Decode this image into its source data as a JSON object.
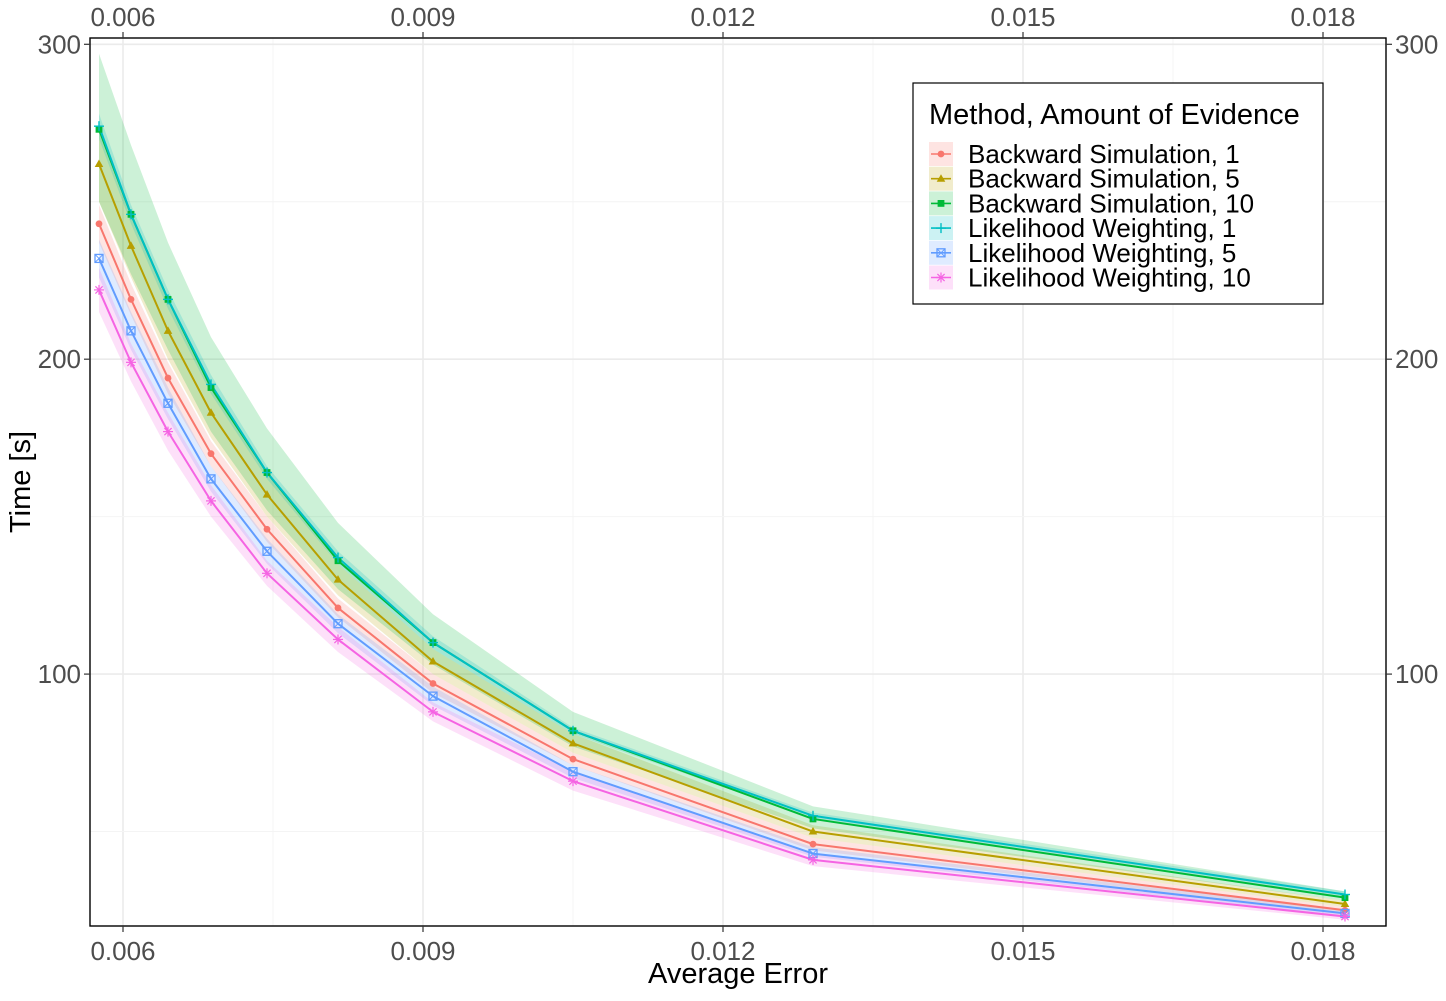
{
  "chart_data": {
    "type": "line",
    "title": "",
    "xlabel": "Average Error",
    "ylabel": "Time [s]",
    "xlim": [
      0.00567,
      0.01863
    ],
    "ylim": [
      20,
      302
    ],
    "x_ticks": [
      0.006,
      0.009,
      0.012,
      0.015,
      0.018
    ],
    "x_tick_labels": [
      "0.006",
      "0.009",
      "0.012",
      "0.015",
      "0.018"
    ],
    "y_ticks": [
      100,
      200,
      300
    ],
    "y_tick_labels": [
      "100",
      "200",
      "300"
    ],
    "grid": true,
    "legend_position": "top-right",
    "legend_title": "Method, Amount of Evidence",
    "x": [
      0.00576,
      0.00608,
      0.00645,
      0.00688,
      0.00744,
      0.00815,
      0.0091,
      0.0105,
      0.0129,
      0.01822
    ],
    "series": [
      {
        "name": "Backward Simulation, 1",
        "color": "#F8766D",
        "marker": "circle",
        "values": [
          243,
          219,
          194,
          170,
          146,
          121,
          97,
          73,
          46,
          25
        ],
        "lower": [
          237,
          214,
          189,
          166,
          142,
          118,
          94,
          71,
          44,
          24
        ],
        "upper": [
          249,
          224,
          199,
          174,
          150,
          124,
          100,
          75,
          48,
          26
        ]
      },
      {
        "name": "Backward Simulation, 5",
        "color": "#B79F00",
        "marker": "triangle",
        "values": [
          262,
          236,
          209,
          183,
          157,
          130,
          104,
          78,
          50,
          27
        ],
        "lower": [
          250,
          226,
          200,
          175,
          150,
          125,
          100,
          75,
          48,
          26
        ],
        "upper": [
          274,
          246,
          218,
          191,
          164,
          135,
          108,
          81,
          52,
          28
        ]
      },
      {
        "name": "Backward Simulation, 10",
        "color": "#00BA38",
        "marker": "square",
        "values": [
          273,
          246,
          219,
          191,
          164,
          136,
          110,
          82,
          54,
          29
        ],
        "lower": [
          250,
          227,
          203,
          177,
          152,
          127,
          103,
          77,
          51,
          28
        ],
        "upper": [
          297,
          268,
          237,
          207,
          178,
          148,
          119,
          88,
          58,
          31
        ]
      },
      {
        "name": "Likelihood Weighting, 1",
        "color": "#00BFC4",
        "marker": "plus",
        "values": [
          274,
          246,
          219,
          192,
          164,
          137,
          110,
          82,
          55,
          30
        ],
        "lower": [
          270,
          243,
          216,
          189,
          162,
          135,
          108,
          81,
          54,
          29
        ],
        "upper": [
          278,
          249,
          222,
          195,
          166,
          139,
          112,
          83,
          56,
          31
        ]
      },
      {
        "name": "Likelihood Weighting, 5",
        "color": "#619CFF",
        "marker": "square-x",
        "values": [
          232,
          209,
          186,
          162,
          139,
          116,
          93,
          69,
          43,
          24
        ],
        "lower": [
          226,
          203,
          181,
          158,
          135,
          113,
          90,
          67,
          42,
          23
        ],
        "upper": [
          238,
          215,
          191,
          166,
          143,
          119,
          96,
          71,
          45,
          25
        ]
      },
      {
        "name": "Likelihood Weighting, 10",
        "color": "#F564E3",
        "marker": "star",
        "values": [
          222,
          199,
          177,
          155,
          132,
          111,
          88,
          66,
          41,
          23
        ],
        "lower": [
          215,
          193,
          171,
          150,
          128,
          107,
          85,
          63,
          39,
          22
        ],
        "upper": [
          229,
          205,
          183,
          160,
          136,
          115,
          91,
          69,
          43,
          24
        ]
      }
    ]
  }
}
